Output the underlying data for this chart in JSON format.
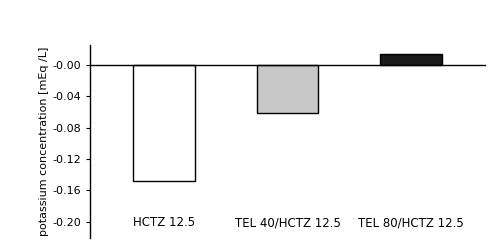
{
  "categories": [
    "HCTZ 12.5",
    "TEL 40/HCTZ 12.5",
    "TEL 80/HCTZ 12.5"
  ],
  "values": [
    -0.148,
    -0.062,
    0.013
  ],
  "bar_colors": [
    "#ffffff",
    "#c8c8c8",
    "#1a1a1a"
  ],
  "bar_edgecolors": [
    "#000000",
    "#000000",
    "#000000"
  ],
  "bar_width": 0.5,
  "bar_positions": [
    1,
    2,
    3
  ],
  "ylabel": "potassium concentration [mEq /L]",
  "ylim": [
    -0.22,
    0.025
  ],
  "yticks": [
    -0.2,
    -0.16,
    -0.12,
    -0.08,
    -0.04,
    -0.0
  ],
  "ytick_labels": [
    "-0.20",
    "-0.16",
    "-0.12",
    "-0.08",
    "-0.04",
    "-0.00"
  ],
  "background_color": "#ffffff",
  "label_fontsize": 8.5,
  "ylabel_fontsize": 8,
  "tick_fontsize": 8
}
